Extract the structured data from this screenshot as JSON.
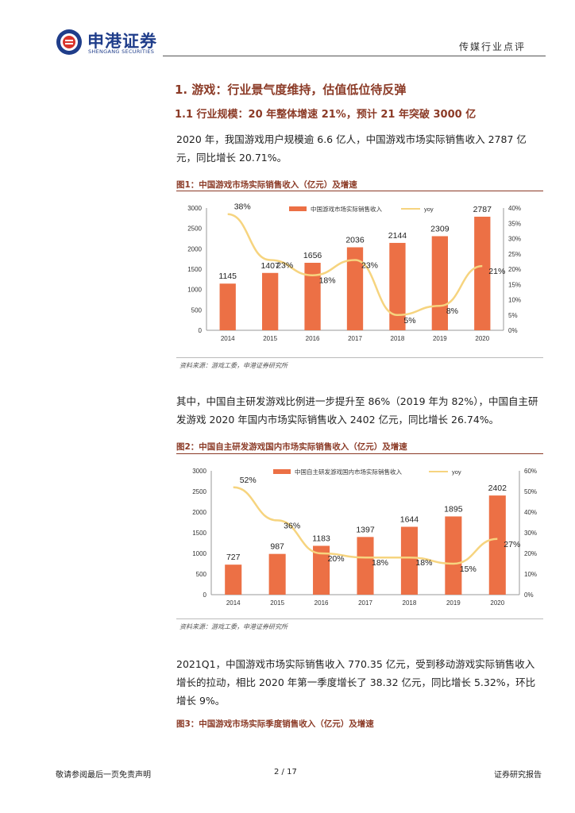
{
  "header": {
    "logo_cn": "申港证券",
    "logo_en": "SHENGANG SECURITIES",
    "section_label": "传媒行业点评"
  },
  "headings": {
    "h1": "1. 游戏：行业景气度维持，估值低位待反弹",
    "h2": "1.1 行业规模：20 年整体增速 21%，预计 21 年突破 3000 亿"
  },
  "paragraphs": {
    "p1": "2020 年，我国游戏用户规模逾 6.6 亿人，中国游戏市场实际销售收入 2787 亿元，同比增长 20.71%。",
    "p2": "其中，中国自主研发游戏比例进一步提升至 86%（2019 年为 82%），中国自主研发游戏 2020 年国内市场实际销售收入 2402 亿元，同比增长 26.74%。",
    "p3": "2021Q1，中国游戏市场实际销售收入 770.35 亿元，受到移动游戏实际销售收入增长的拉动，相比 2020 年第一季度增长了 38.32 亿元，同比增长 5.32%，环比增长 9%。"
  },
  "figures": {
    "fig1_title": "图1：中国游戏市场实际销售收入（亿元）及增速",
    "fig2_title": "图2：中国自主研发游戏国内市场实际销售收入（亿元）及增速",
    "fig3_title": "图3：中国游戏市场实际季度销售收入（亿元）及增速",
    "source1": "资料来源：游戏工委，申港证券研究所",
    "source2": "资料来源：游戏工委，申港证券研究所"
  },
  "colors": {
    "bar": "#ec7045",
    "line": "#f6d47f",
    "accent": "#8b3a26",
    "brand": "#1f3d8a"
  },
  "chart_data": [
    {
      "type": "bar",
      "categories": [
        "2014",
        "2015",
        "2016",
        "2017",
        "2018",
        "2019",
        "2020"
      ],
      "series": [
        {
          "name": "中国游戏市场实际销售收入",
          "values": [
            1145,
            1407,
            1656,
            2036,
            2144,
            2309,
            2787
          ]
        },
        {
          "name": "yoy",
          "values": [
            38,
            23,
            18,
            23,
            5,
            8,
            21
          ],
          "labels": [
            "38%",
            "23%",
            "18%",
            "23%",
            "5%",
            "8%",
            "21%"
          ]
        }
      ],
      "ylim": [
        0,
        3000
      ],
      "yticks": [
        0,
        500,
        1000,
        1500,
        2000,
        2500,
        3000
      ],
      "y2lim": [
        0,
        40
      ],
      "y2ticks": [
        "0%",
        "5%",
        "10%",
        "15%",
        "20%",
        "25%",
        "30%",
        "35%",
        "40%"
      ],
      "legend": "top-center",
      "grid": false
    },
    {
      "type": "bar",
      "categories": [
        "2014",
        "2015",
        "2016",
        "2017",
        "2018",
        "2019",
        "2020"
      ],
      "series": [
        {
          "name": "中国自主研发游戏国内市场实际销售收入",
          "values": [
            727,
            987,
            1183,
            1397,
            1644,
            1895,
            2402
          ]
        },
        {
          "name": "yoy",
          "values": [
            52,
            36,
            20,
            18,
            18,
            15,
            27
          ],
          "labels": [
            "52%",
            "36%",
            "20%",
            "18%",
            "18%",
            "15%",
            "27%"
          ]
        }
      ],
      "ylim": [
        0,
        3000
      ],
      "yticks": [
        0,
        500,
        1000,
        1500,
        2000,
        2500,
        3000
      ],
      "y2lim": [
        0,
        60
      ],
      "y2ticks": [
        "0%",
        "10%",
        "20%",
        "30%",
        "40%",
        "50%",
        "60%"
      ],
      "legend": "top-center",
      "grid": false
    }
  ],
  "footer": {
    "disclaimer": "敬请参阅最后一页免责声明",
    "page": "2 / 17",
    "doc_type": "证券研究报告"
  }
}
